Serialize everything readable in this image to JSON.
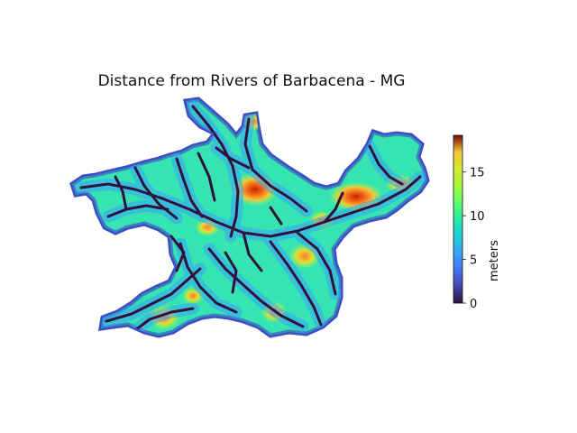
{
  "title": "Distance from Rivers of Barbacena - MG",
  "colorbar": {
    "label": "meters",
    "colormap": "turbo",
    "min": 0,
    "max": 19.2,
    "ticks": [
      0,
      5,
      10,
      15
    ],
    "tick_labels": [
      "0",
      "5",
      "10",
      "15"
    ]
  },
  "map": {
    "region": "Barbacena - MG",
    "variable": "distance from rivers",
    "units": "meters",
    "axes_visible": false,
    "hotspots_max_values": [
      19,
      18,
      16,
      15,
      13,
      12,
      11
    ]
  }
}
